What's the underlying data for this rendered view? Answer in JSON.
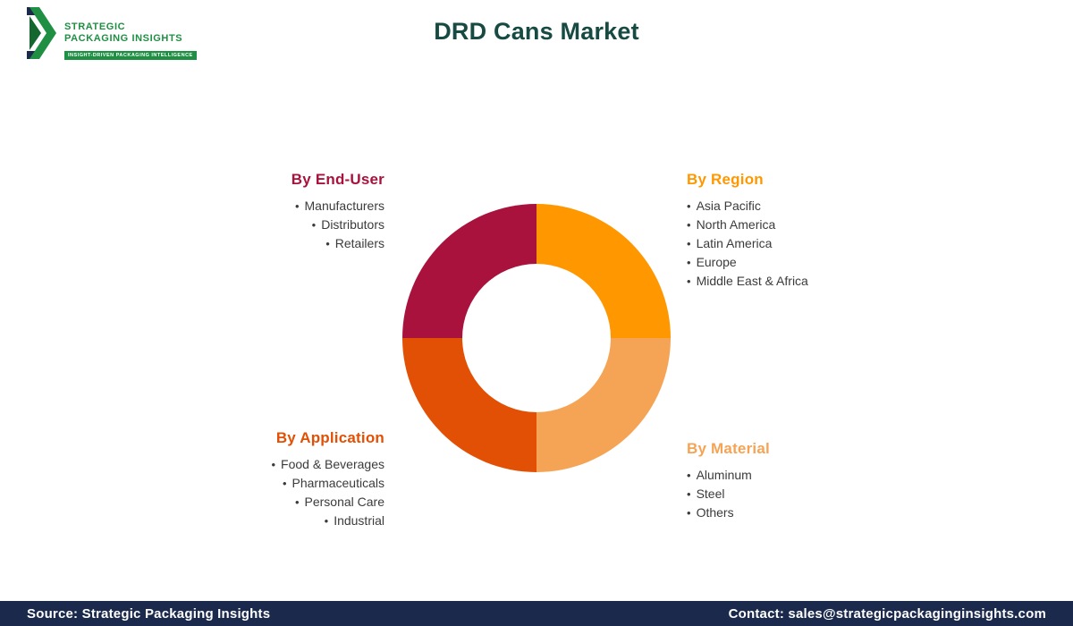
{
  "header": {
    "title": "DRD Cans Market",
    "logo": {
      "line1": "STRATEGIC",
      "line2": "PACKAGING INSIGHTS",
      "tagline": "INSIGHT-DRIVEN PACKAGING INTELLIGENCE"
    }
  },
  "brand": {
    "title_color": "#164a42",
    "logo_green": "#1f8f44",
    "logo_dark_green": "#14672f",
    "navy": "#1b2a4c"
  },
  "segments": {
    "end_user": {
      "heading": "By End-User",
      "color": "#a8123c",
      "items": [
        "Manufacturers",
        "Distributors",
        "Retailers"
      ]
    },
    "region": {
      "heading": "By Region",
      "color": "#ff9800",
      "items": [
        "Asia Pacific",
        "North America",
        "Latin America",
        "Europe",
        "Middle East & Africa"
      ]
    },
    "application": {
      "heading": "By Application",
      "color": "#e25005",
      "items": [
        "Food & Beverages",
        "Pharmaceuticals",
        "Personal Care",
        "Industrial"
      ]
    },
    "material": {
      "heading": "By Material",
      "color": "#f5a455",
      "items": [
        "Aluminum",
        "Steel",
        "Others"
      ]
    }
  },
  "chart_data": {
    "type": "pie",
    "subtype": "donut",
    "title": "DRD Cans Market",
    "legend_position": "none",
    "segments": [
      {
        "label": "By Region",
        "value": 25,
        "color": "#ff9800"
      },
      {
        "label": "By Material",
        "value": 25,
        "color": "#f5a455"
      },
      {
        "label": "By Application",
        "value": 25,
        "color": "#e25005"
      },
      {
        "label": "By End-User",
        "value": 25,
        "color": "#a8123c"
      }
    ]
  },
  "footer": {
    "source": "Source: Strategic Packaging Insights",
    "contact": "Contact: sales@strategicpackaginginsights.com",
    "background": "#1b2a4c"
  }
}
